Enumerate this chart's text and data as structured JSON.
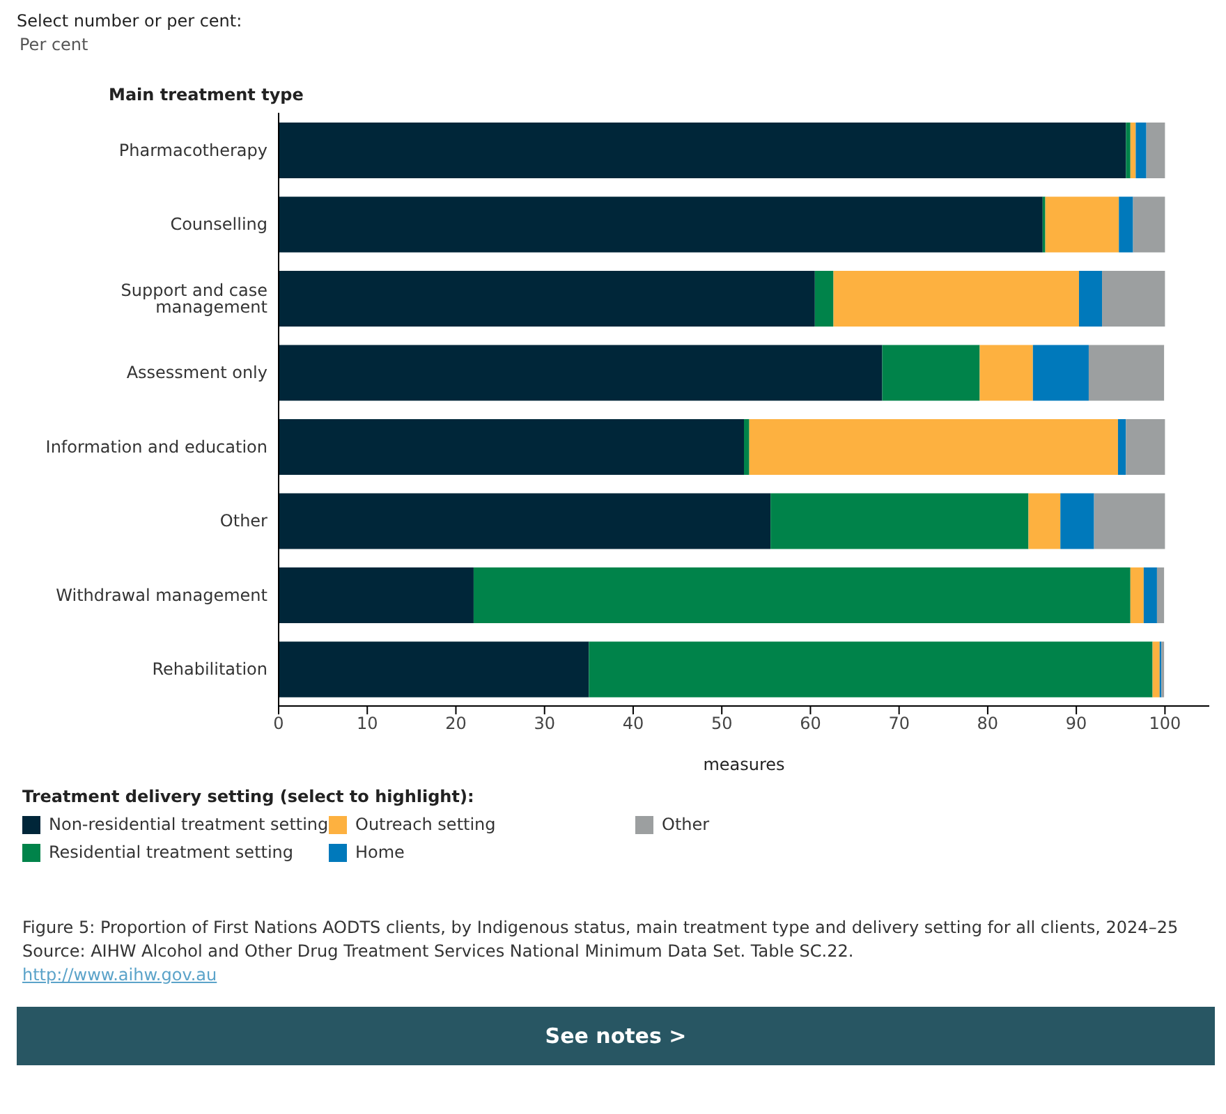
{
  "chart_data": {
    "type": "bar",
    "orientation": "horizontal",
    "stacked": true,
    "title": "Select number or per cent:",
    "subtitle": "Per cent",
    "ylabel": "Main treatment type",
    "xlabel": "measures",
    "legend_title": "Treatment delivery setting (select to highlight):",
    "legend": "bottom",
    "grid": false,
    "categories": [
      "Pharmacotherapy",
      "Counselling",
      "Support and case management",
      "Assessment only",
      "Information and education",
      "Other",
      "Withdrawal management",
      "Rehabilitation"
    ],
    "series": [
      {
        "name": "Non-residential treatment setting",
        "color": "#002639",
        "values": [
          95.6,
          86.2,
          60.5,
          68.1,
          52.5,
          55.5,
          22.0,
          35.0
        ]
      },
      {
        "name": "Residential treatment setting",
        "color": "#00834a",
        "values": [
          0.5,
          0.3,
          2.1,
          11.0,
          0.6,
          29.1,
          74.1,
          63.6
        ]
      },
      {
        "name": "Outreach setting",
        "color": "#fdb140",
        "values": [
          0.6,
          8.3,
          27.7,
          6.0,
          41.6,
          3.6,
          1.5,
          0.8
        ]
      },
      {
        "name": "Home",
        "color": "#0079bb",
        "values": [
          1.2,
          1.6,
          2.6,
          6.3,
          0.9,
          3.8,
          1.5,
          0.2
        ]
      },
      {
        "name": "Other",
        "color": "#9c9fa0",
        "values": [
          2.1,
          3.6,
          7.1,
          8.5,
          4.4,
          8.0,
          0.8,
          0.3
        ]
      }
    ],
    "xlim": [
      0,
      105
    ],
    "xticks": [
      0,
      10,
      20,
      30,
      40,
      50,
      60,
      70,
      80,
      90,
      100
    ],
    "annotations": [
      "Figure 5: Proportion of First Nations AODTS clients, by Indigenous status, main treatment type and delivery setting for all clients, 2024–25",
      "Source: AIHW Alcohol and Other Drug Treatment Services National Minimum Data Set. Table SC.22.",
      "http://www.aihw.gov.au",
      "See notes >"
    ]
  }
}
